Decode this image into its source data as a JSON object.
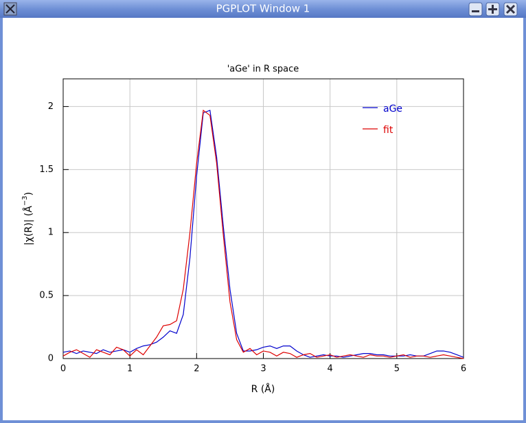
{
  "window": {
    "title": "PGPLOT Window 1"
  },
  "chart_data": {
    "type": "line",
    "title": "'aGe' in R space",
    "x_label": "R (Å)",
    "y_label": {
      "text": "|χ(R)| (Å",
      "sup": "−3",
      "end": ")"
    },
    "x": [
      0,
      0.1,
      0.2,
      0.3,
      0.4,
      0.5,
      0.6,
      0.7,
      0.8,
      0.9,
      1,
      1.1,
      1.2,
      1.3,
      1.4,
      1.5,
      1.6,
      1.7,
      1.8,
      1.9,
      2,
      2.1,
      2.2,
      2.3,
      2.4,
      2.5,
      2.6,
      2.7,
      2.8,
      2.9,
      3,
      3.1,
      3.2,
      3.3,
      3.4,
      3.5,
      3.6,
      3.7,
      3.8,
      3.9,
      4,
      4.1,
      4.2,
      4.3,
      4.4,
      4.5,
      4.6,
      4.7,
      4.8,
      4.9,
      5,
      5.1,
      5.2,
      5.3,
      5.4,
      5.5,
      5.6,
      5.7,
      5.8,
      5.9,
      6
    ],
    "series": [
      {
        "name": "aGe",
        "color": "#0000cc",
        "values": [
          0.05,
          0.06,
          0.04,
          0.06,
          0.05,
          0.04,
          0.07,
          0.05,
          0.06,
          0.07,
          0.05,
          0.08,
          0.1,
          0.11,
          0.13,
          0.17,
          0.22,
          0.2,
          0.35,
          0.8,
          1.45,
          1.95,
          1.97,
          1.6,
          1.05,
          0.55,
          0.2,
          0.06,
          0.06,
          0.07,
          0.09,
          0.1,
          0.08,
          0.1,
          0.1,
          0.06,
          0.03,
          0.01,
          0.02,
          0.03,
          0.02,
          0.02,
          0.01,
          0.02,
          0.03,
          0.04,
          0.04,
          0.03,
          0.03,
          0.02,
          0.02,
          0.02,
          0.03,
          0.02,
          0.02,
          0.04,
          0.06,
          0.06,
          0.05,
          0.03,
          0.01
        ]
      },
      {
        "name": "fit",
        "color": "#dd0000",
        "values": [
          0.02,
          0.05,
          0.07,
          0.04,
          0.01,
          0.07,
          0.05,
          0.03,
          0.09,
          0.07,
          0.02,
          0.07,
          0.03,
          0.1,
          0.17,
          0.26,
          0.27,
          0.3,
          0.55,
          1.0,
          1.55,
          1.97,
          1.93,
          1.55,
          0.98,
          0.45,
          0.15,
          0.05,
          0.08,
          0.03,
          0.06,
          0.05,
          0.02,
          0.05,
          0.04,
          0.01,
          0.03,
          0.04,
          0.01,
          0.02,
          0.03,
          0.01,
          0.02,
          0.03,
          0.02,
          0.01,
          0.03,
          0.02,
          0.02,
          0.01,
          0.02,
          0.03,
          0.01,
          0.02,
          0.02,
          0.01,
          0.02,
          0.03,
          0.02,
          0.01,
          0
        ]
      }
    ],
    "xlim": [
      0,
      6
    ],
    "xticks": [
      0,
      1,
      2,
      3,
      4,
      5,
      6
    ],
    "ylim": [
      0,
      2.22
    ],
    "yticks": [
      0,
      0.5,
      1,
      1.5,
      2
    ],
    "grid": true,
    "legend": "upper right"
  }
}
